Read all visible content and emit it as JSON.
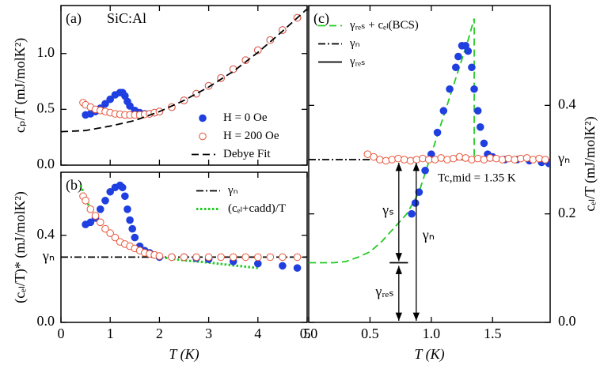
{
  "chart_data": [
    {
      "type": "scatter",
      "label": "(a)",
      "annotation": "SiC:Al",
      "ylabel": "cₚ/T (mJ/molK²)",
      "xlim": [
        0,
        5
      ],
      "ylim": [
        0,
        1.43
      ],
      "xticks": [
        0,
        1,
        2,
        3,
        4,
        5
      ],
      "yticks": [
        {
          "value": 0,
          "label": "0.0"
        },
        0.5,
        {
          "value": 1,
          "label": "1.0"
        }
      ],
      "legend": "lower right",
      "series": [
        {
          "name": "H = 0 Oe",
          "color": "#1f3fe0",
          "marker": "filled",
          "x": [
            0.5,
            0.6,
            0.7,
            0.8,
            0.9,
            1.0,
            1.1,
            1.2,
            1.25,
            1.3,
            1.35,
            1.4,
            1.5,
            1.6,
            1.7,
            1.8,
            1.9,
            2.0,
            2.25,
            2.5,
            2.75,
            3.0,
            3.25,
            3.5,
            3.75,
            4.0,
            4.25,
            4.5,
            4.8
          ],
          "values": [
            0.45,
            0.46,
            0.48,
            0.51,
            0.55,
            0.59,
            0.63,
            0.65,
            0.65,
            0.62,
            0.57,
            0.53,
            0.49,
            0.47,
            0.46,
            0.46,
            0.47,
            0.48,
            0.52,
            0.58,
            0.64,
            0.71,
            0.78,
            0.86,
            0.94,
            1.03,
            1.12,
            1.21,
            1.32
          ]
        },
        {
          "name": "H = 200 Oe",
          "color": "#e8553a",
          "marker": "open",
          "x": [
            0.45,
            0.5,
            0.6,
            0.7,
            0.8,
            0.9,
            1.0,
            1.1,
            1.2,
            1.3,
            1.4,
            1.5,
            1.6,
            1.7,
            1.8,
            1.9,
            2.0,
            2.25,
            2.5,
            2.75,
            3.0,
            3.25,
            3.5,
            3.75,
            4.0,
            4.25,
            4.5,
            4.8
          ],
          "values": [
            0.56,
            0.54,
            0.52,
            0.5,
            0.49,
            0.48,
            0.47,
            0.46,
            0.455,
            0.45,
            0.45,
            0.45,
            0.45,
            0.455,
            0.46,
            0.47,
            0.48,
            0.52,
            0.58,
            0.64,
            0.71,
            0.78,
            0.86,
            0.94,
            1.03,
            1.12,
            1.21,
            1.32
          ]
        },
        {
          "name": "Debye Fit",
          "color": "#000000",
          "line": "dash",
          "x": [
            0,
            0.5,
            1,
            1.5,
            2,
            2.5,
            3,
            3.5,
            4,
            4.5,
            5
          ],
          "values": [
            0.3,
            0.31,
            0.35,
            0.4,
            0.48,
            0.58,
            0.7,
            0.84,
            1.01,
            1.2,
            1.4
          ]
        }
      ]
    },
    {
      "type": "scatter",
      "label": "(b)",
      "ylabel": "(cₑₗ/T)* (mJ/molK²)",
      "xlabel": "T (K)",
      "xlim": [
        0,
        5
      ],
      "ylim": [
        0,
        0.69
      ],
      "xticks": [
        0,
        1,
        2,
        3,
        4,
        5
      ],
      "yticks": [
        {
          "value": 0,
          "label": "0.0"
        },
        {
          "value": 0.3,
          "label": "γₙ"
        },
        0.4
      ],
      "legend": "upper right",
      "series": [
        {
          "name": "γₙ",
          "color": "#000000",
          "line": "dashdot",
          "x": [
            0,
            5
          ],
          "values": [
            0.3,
            0.3
          ]
        },
        {
          "name": "(cₑₗ+cadd)/T",
          "color": "#22cc22",
          "line": "dot",
          "x": [
            0.4,
            0.5,
            0.6,
            0.8,
            1.0,
            1.2,
            1.4,
            1.6,
            1.8,
            2.0,
            2.5,
            3.0,
            3.5,
            4.0
          ],
          "values": [
            0.63,
            0.57,
            0.52,
            0.46,
            0.41,
            0.37,
            0.345,
            0.325,
            0.31,
            0.3,
            0.285,
            0.275,
            0.262,
            0.25
          ]
        },
        {
          "name": null,
          "color": "#1f3fe0",
          "marker": "filled",
          "x": [
            0.5,
            0.6,
            0.7,
            0.8,
            0.9,
            1.0,
            1.1,
            1.2,
            1.25,
            1.3,
            1.35,
            1.4,
            1.45,
            1.5,
            1.6,
            1.7,
            1.8,
            1.9,
            2.0,
            2.25,
            2.5,
            2.75,
            3.0,
            3.5,
            4.0,
            4.5,
            4.8
          ],
          "values": [
            0.45,
            0.46,
            0.48,
            0.52,
            0.56,
            0.6,
            0.62,
            0.63,
            0.62,
            0.58,
            0.52,
            0.47,
            0.43,
            0.39,
            0.35,
            0.33,
            0.32,
            0.31,
            0.3,
            0.3,
            0.3,
            0.295,
            0.29,
            0.28,
            0.27,
            0.26,
            0.25
          ]
        },
        {
          "name": null,
          "color": "#e8553a",
          "marker": "open",
          "x": [
            0.45,
            0.5,
            0.6,
            0.7,
            0.8,
            0.9,
            1.0,
            1.1,
            1.2,
            1.3,
            1.4,
            1.5,
            1.6,
            1.7,
            1.8,
            1.9,
            2.0,
            2.25,
            2.5,
            2.75,
            3.0,
            3.25,
            3.5,
            3.75,
            4.0,
            4.25,
            4.5,
            4.8
          ],
          "values": [
            0.58,
            0.56,
            0.52,
            0.49,
            0.46,
            0.43,
            0.41,
            0.39,
            0.37,
            0.36,
            0.35,
            0.34,
            0.33,
            0.32,
            0.315,
            0.31,
            0.305,
            0.3,
            0.3,
            0.3,
            0.3,
            0.3,
            0.3,
            0.3,
            0.3,
            0.3,
            0.3,
            0.3
          ]
        }
      ]
    },
    {
      "type": "scatter",
      "label": "(c)",
      "ylabel": "cₑₗ/T (mJ/molK²)",
      "xlabel": "T (K)",
      "y_axis_position": "right",
      "xlim": [
        0,
        1.97
      ],
      "ylim": [
        0,
        0.584
      ],
      "xticks": [
        {
          "value": 0,
          "label": "0.0"
        },
        0.5,
        {
          "value": 1,
          "label": "1.0"
        },
        1.5
      ],
      "yticks": [
        {
          "value": 0,
          "label": "0.0"
        },
        0.2,
        {
          "value": 0.3,
          "label": "γₙ"
        },
        0.4
      ],
      "legend": "upper left",
      "annotations": [
        "Tc,mid = 1.35 K",
        "γₛ",
        "γₙ",
        "γᵣₑₛ"
      ],
      "series": [
        {
          "name": "γᵣₑₛ + cₑₗ(BCS)",
          "color": "#22cc22",
          "line": "dash",
          "x": [
            0,
            0.2,
            0.3,
            0.4,
            0.5,
            0.6,
            0.7,
            0.8,
            0.9,
            1.0,
            1.1,
            1.2,
            1.3,
            1.35,
            1.35
          ],
          "values": [
            0.11,
            0.11,
            0.112,
            0.12,
            0.13,
            0.15,
            0.175,
            0.2,
            0.24,
            0.31,
            0.38,
            0.45,
            0.52,
            0.56,
            0.3
          ]
        },
        {
          "name": "γₙ",
          "color": "#000000",
          "line": "dashdot",
          "x": [
            0,
            1.97
          ],
          "values": [
            0.3,
            0.3
          ]
        },
        {
          "name": "γᵣₑₛ",
          "color": "#000000",
          "line": "solid",
          "x": [
            0.66,
            0.81
          ],
          "values": [
            0.11,
            0.11
          ]
        },
        {
          "name": null,
          "color": "#1f3fe0",
          "marker": "filled",
          "x": [
            0.84,
            0.87,
            0.9,
            0.95,
            1.0,
            1.05,
            1.1,
            1.15,
            1.2,
            1.22,
            1.25,
            1.28,
            1.3,
            1.33,
            1.35,
            1.38,
            1.4,
            1.43,
            1.46,
            1.5,
            1.6,
            1.7,
            1.8,
            1.9,
            1.96
          ],
          "values": [
            0.2,
            0.22,
            0.24,
            0.28,
            0.31,
            0.35,
            0.39,
            0.43,
            0.47,
            0.49,
            0.51,
            0.51,
            0.5,
            0.47,
            0.43,
            0.39,
            0.36,
            0.33,
            0.31,
            0.305,
            0.3,
            0.3,
            0.298,
            0.295,
            0.293
          ]
        },
        {
          "name": null,
          "color": "#e8553a",
          "marker": "open",
          "x": [
            0.48,
            0.53,
            0.58,
            0.63,
            0.68,
            0.73,
            0.78,
            0.83,
            0.88,
            0.93,
            0.98,
            1.03,
            1.08,
            1.13,
            1.18,
            1.23,
            1.28,
            1.33,
            1.38,
            1.43,
            1.48,
            1.53,
            1.58,
            1.63,
            1.68,
            1.73,
            1.78,
            1.83,
            1.88,
            1.93
          ],
          "values": [
            0.31,
            0.305,
            0.3,
            0.298,
            0.3,
            0.302,
            0.3,
            0.298,
            0.3,
            0.302,
            0.3,
            0.3,
            0.303,
            0.3,
            0.302,
            0.305,
            0.303,
            0.3,
            0.302,
            0.3,
            0.303,
            0.302,
            0.3,
            0.302,
            0.3,
            0.302,
            0.303,
            0.3,
            0.302,
            0.3
          ]
        }
      ]
    }
  ]
}
